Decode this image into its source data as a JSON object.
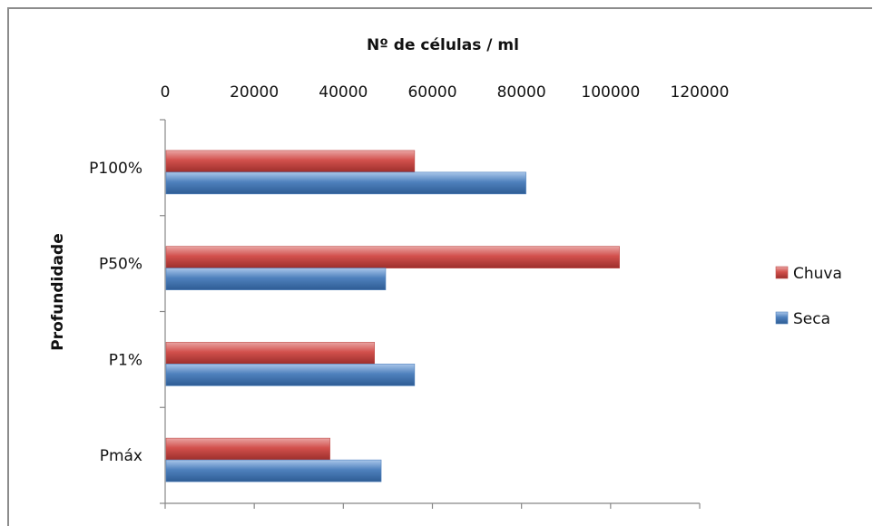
{
  "chart_data": {
    "type": "bar",
    "orientation": "horizontal",
    "title": "Nº de células  / ml",
    "xlabel": "Nº de células  / ml",
    "ylabel": "Profundidade",
    "categories": [
      "P100%",
      "P50%",
      "P1%",
      "Pmáx"
    ],
    "series": [
      {
        "name": "Chuva",
        "color": "#c0504d",
        "values": [
          56000,
          102000,
          47000,
          37000
        ]
      },
      {
        "name": "Seca",
        "color": "#4f81bd",
        "values": [
          81000,
          49500,
          56000,
          48500
        ]
      }
    ],
    "xlim": [
      0,
      120000
    ],
    "xticks": [
      "0",
      "20000",
      "40000",
      "60000",
      "80000",
      "100000",
      "120000"
    ],
    "x_axis_position": "top",
    "grid": false,
    "legend_position": "right"
  }
}
